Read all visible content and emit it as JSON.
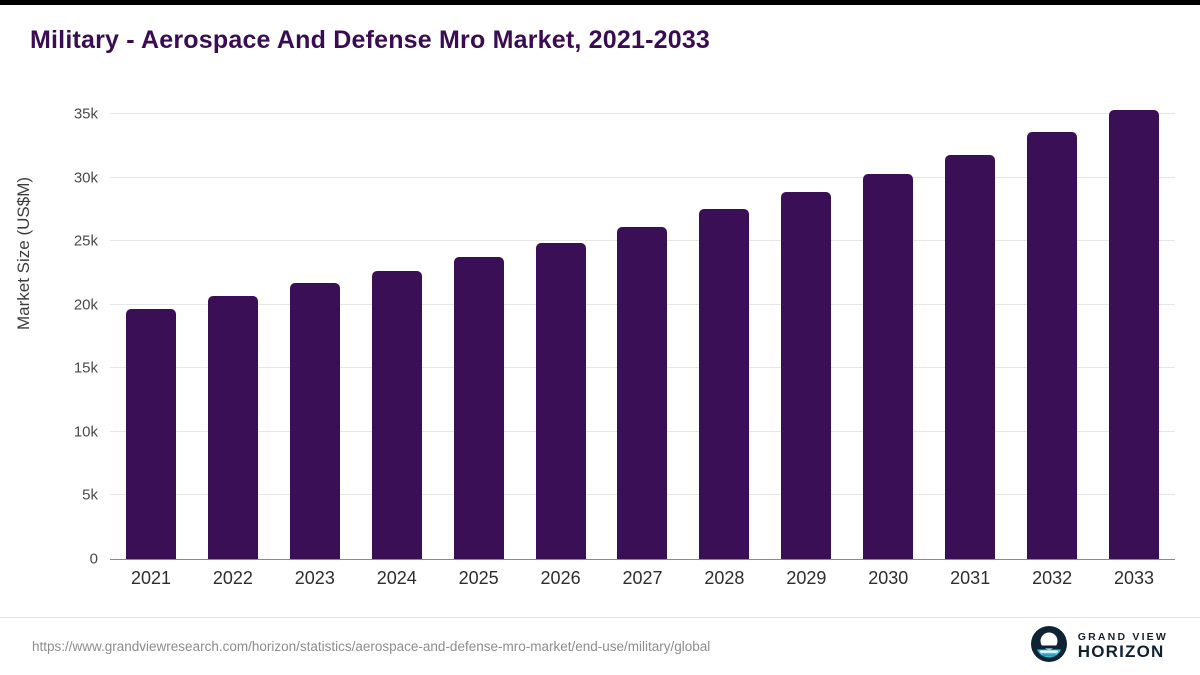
{
  "page": {
    "title": "Military - Aerospace And Defense Mro Market, 2021-2033"
  },
  "chart_data": {
    "type": "bar",
    "title": "Military - Aerospace And Defense Mro Market, 2021-2033",
    "categories": [
      "2021",
      "2022",
      "2023",
      "2024",
      "2025",
      "2026",
      "2027",
      "2028",
      "2029",
      "2030",
      "2031",
      "2032",
      "2033"
    ],
    "values": [
      19700,
      20700,
      21700,
      22650,
      23750,
      24850,
      26100,
      27500,
      28900,
      30300,
      31800,
      33550,
      35350
    ],
    "xlabel": "",
    "ylabel": "Market Size (US$M)",
    "ylim": [
      0,
      36200
    ],
    "yticks": [
      0,
      5000,
      10000,
      15000,
      20000,
      25000,
      30000,
      35000
    ],
    "ytick_labels": [
      "0",
      "5k",
      "10k",
      "15k",
      "20k",
      "25k",
      "30k",
      "35k"
    ],
    "grid": true,
    "legend": "none",
    "bar_color": "#3b0f56"
  },
  "footer": {
    "source_url": "https://www.grandviewresearch.com/horizon/statistics/aerospace-and-defense-mro-market/end-use/military/global",
    "brand_line1": "GRAND VIEW",
    "brand_line2": "HORIZON"
  },
  "colors": {
    "title": "#3a0d52",
    "bar": "#3b0f56",
    "topbar": "#000000",
    "logo_circle": "#0e2334",
    "logo_accent": "#39c3e6"
  }
}
